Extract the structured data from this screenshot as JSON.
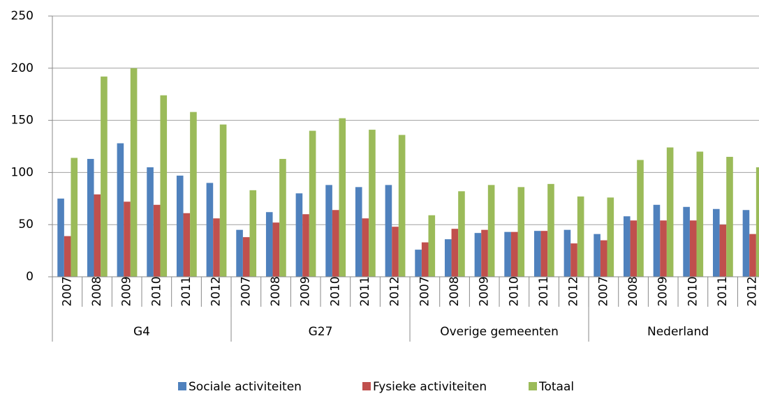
{
  "chart_data": {
    "type": "bar",
    "categories": [
      "2007",
      "2008",
      "2009",
      "2010",
      "2011",
      "2012",
      "2007",
      "2008",
      "2009",
      "2010",
      "2011",
      "2012",
      "2007",
      "2008",
      "2009",
      "2010",
      "2011",
      "2012",
      "2007",
      "2008",
      "2009",
      "2010",
      "2011",
      "2012"
    ],
    "category_groups": [
      "G4",
      "G27",
      "Overige gemeenten",
      "Nederland"
    ],
    "series": [
      {
        "name": "Sociale activiteiten",
        "color": "#4f81bd",
        "values": [
          75,
          113,
          128,
          105,
          97,
          90,
          45,
          62,
          80,
          88,
          86,
          88,
          26,
          36,
          42,
          43,
          44,
          45,
          41,
          58,
          69,
          67,
          65,
          64
        ]
      },
      {
        "name": "Fysieke activiteiten",
        "color": "#c0504d",
        "values": [
          39,
          79,
          72,
          69,
          61,
          56,
          38,
          52,
          60,
          64,
          56,
          48,
          33,
          46,
          45,
          43,
          44,
          32,
          35,
          54,
          54,
          54,
          50,
          41
        ]
      },
      {
        "name": "Totaal",
        "color": "#9bbb59",
        "values": [
          114,
          192,
          200,
          174,
          158,
          146,
          83,
          113,
          140,
          152,
          141,
          136,
          59,
          82,
          88,
          86,
          89,
          77,
          76,
          112,
          124,
          120,
          115,
          105
        ]
      }
    ],
    "ylim": [
      0,
      250
    ],
    "yticks": [
      0,
      50,
      100,
      150,
      200,
      250
    ],
    "grid": true,
    "legend": "bottom"
  }
}
